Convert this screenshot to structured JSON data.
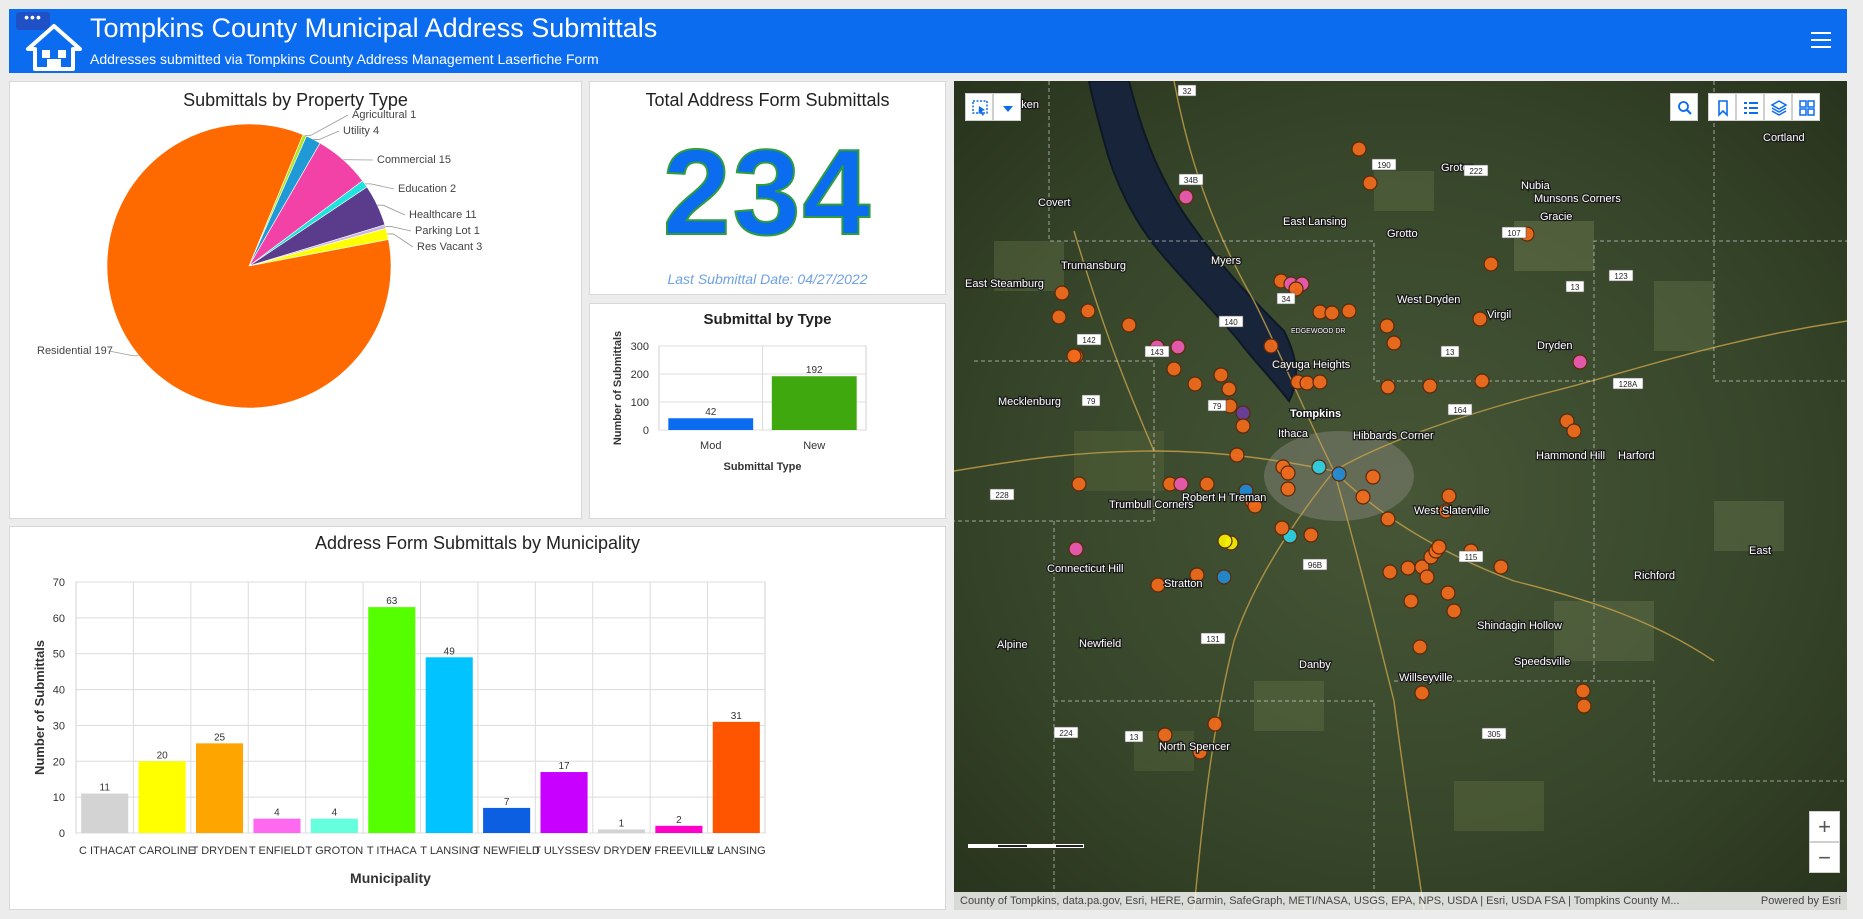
{
  "header": {
    "menu_icon": "ellipsis-icon",
    "logo_icon": "house-icon",
    "title": "Tompkins County Municipal Address Submittals",
    "subtitle": "Addresses submitted via Tompkins County Address Management Laserfiche Form",
    "nav_icon": "hamburger-menu-icon"
  },
  "pie": {
    "title": "Submittals by Property Type",
    "labels": [
      "Agricultural 1",
      "Utility 4",
      "Commercial 15",
      "Education 2",
      "Healthcare 11",
      "Parking Lot 1",
      "Res Vacant 3",
      "Residential 197"
    ]
  },
  "total": {
    "title": "Total Address Form Submittals",
    "value": "234",
    "last_date": "Last Submittal Date: 04/27/2022"
  },
  "type_chart": {
    "title": "Submittal by Type",
    "ylabel": "Number of Submittals",
    "xlabel": "Submittal Type"
  },
  "muni_chart": {
    "title": "Address Form Submittals by Municipality",
    "ylabel": "Number of Submittals",
    "xlabel": "Municipality"
  },
  "chart_data": [
    {
      "type": "pie",
      "title": "Submittals by Property Type",
      "categories": [
        "Agricultural",
        "Utility",
        "Commercial",
        "Education",
        "Healthcare",
        "Parking Lot",
        "Res Vacant",
        "Residential"
      ],
      "values": [
        1,
        4,
        15,
        2,
        11,
        1,
        3,
        197
      ],
      "colors": [
        "#b5e61d",
        "#1f9ad6",
        "#f241a7",
        "#1ee3e0",
        "#5b3b8c",
        "#c8b4e8",
        "#ffff00",
        "#ff6a00"
      ]
    },
    {
      "type": "bar",
      "title": "Submittal by Type",
      "categories": [
        "Mod",
        "New"
      ],
      "values": [
        42,
        192
      ],
      "colors": [
        "#0b6cf0",
        "#3fa80f"
      ],
      "xlabel": "Submittal Type",
      "ylabel": "Number of Submittals",
      "ylim": [
        0,
        300
      ],
      "yticks": [
        0,
        100,
        200,
        300
      ]
    },
    {
      "type": "bar",
      "title": "Address Form Submittals by Municipality",
      "categories": [
        "C ITHACA",
        "T CAROLINE",
        "T DRYDEN",
        "T ENFIELD",
        "T GROTON",
        "T ITHACA",
        "T LANSING",
        "T NEWFIELD",
        "T ULYSSES",
        "V DRYDEN",
        "V FREEVILLE",
        "V LANSING"
      ],
      "values": [
        11,
        20,
        25,
        4,
        4,
        63,
        49,
        7,
        17,
        1,
        2,
        31
      ],
      "colors": [
        "#d3d3d3",
        "#ffff00",
        "#ffa500",
        "#ff69f0",
        "#66ffdd",
        "#55ff00",
        "#00c3ff",
        "#0b5fe0",
        "#c800ff",
        "#d3d3d3",
        "#ff00c8",
        "#ff5500"
      ],
      "xlabel": "Municipality",
      "ylabel": "Number of Submittals",
      "ylim": [
        0,
        70
      ],
      "yticks": [
        0,
        10,
        20,
        30,
        40,
        50,
        60,
        70
      ]
    }
  ],
  "map": {
    "toolbar_icons": [
      "select-icon",
      "dropdown-icon",
      "search-icon",
      "bookmark-icon",
      "legend-icon",
      "layers-icon",
      "basemap-gallery-icon"
    ],
    "place_labels": [
      "Covert",
      "East Lansing",
      "Groton",
      "Nubia",
      "Munsons Corners",
      "Grotto",
      "Gracie",
      "Trumansburg",
      "Myers",
      "East Steamburg",
      "West Dryden",
      "Virgil",
      "Dryden",
      "Cayuga Heights",
      "Mecklenburg",
      "Tompkins",
      "Ithaca",
      "Hibbards Corner",
      "Hammond Hill",
      "Harford",
      "Robert H Treman",
      "Trumbull Corners",
      "West Slaterville",
      "Connecticut Hill",
      "Stratton",
      "Richford",
      "Shindagin Hollow",
      "Alpine",
      "Newfield",
      "Danby",
      "Speedsville",
      "Willseyville",
      "North Spencer",
      "Cortland",
      "Laken",
      "East"
    ],
    "road_labels": [
      "32",
      "34B",
      "190",
      "222",
      "107",
      "123",
      "13",
      "34",
      "140",
      "142",
      "143",
      "13",
      "79",
      "79",
      "164",
      "128A",
      "228",
      "96B",
      "115",
      "131",
      "224",
      "13",
      "305"
    ],
    "street_label": "EDGEWOOD DR",
    "attribution": "County of Tompkins, data.pa.gov, Esri, HERE, Garmin, SafeGraph, METI/NASA, USGS, EPA, NPS, USDA | Esri, USDA FSA | Tompkins County M...",
    "powered": "Powered by Esri",
    "zoom_in": "+",
    "zoom_out": "−"
  }
}
